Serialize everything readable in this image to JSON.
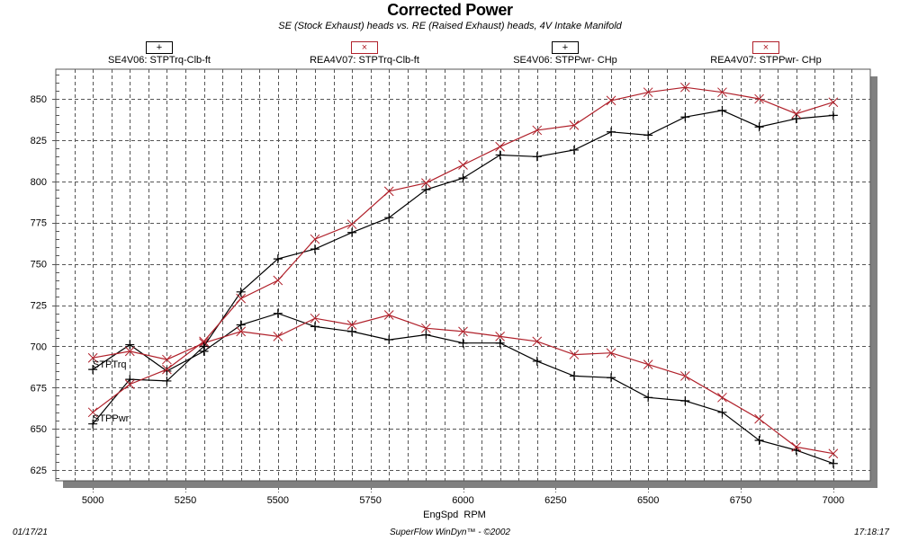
{
  "chart_data": {
    "type": "line",
    "title": "Corrected Power",
    "subtitle": "SE (Stock Exhaust) heads vs. RE (Raised Exhaust) heads, 4V Intake Manifold",
    "xlabel": "EngSpd  RPM",
    "ylabel": "",
    "xlim": [
      4900,
      7100
    ],
    "ylim": [
      618.5,
      868
    ],
    "x_ticks": [
      5000,
      5250,
      5500,
      5750,
      6000,
      6250,
      6500,
      6750,
      7000
    ],
    "y_ticks": [
      625,
      650,
      675,
      700,
      725,
      750,
      775,
      800,
      825,
      850
    ],
    "grid": true,
    "legend_position": "top",
    "x": [
      5000,
      5100,
      5200,
      5300,
      5400,
      5500,
      5600,
      5700,
      5800,
      5900,
      6000,
      6100,
      6200,
      6300,
      6400,
      6500,
      6600,
      6700,
      6800,
      6900,
      7000
    ],
    "series": [
      {
        "name": "SE4V06: STPTrq-Clb-ft",
        "color": "#000000",
        "marker": "plus",
        "values": [
          686,
          701,
          685,
          697,
          713,
          720,
          712,
          709,
          704,
          707,
          702,
          702,
          691,
          682,
          681,
          669,
          667,
          660,
          643,
          637,
          629
        ]
      },
      {
        "name": "REA4V07: STPTrq-Clb-ft",
        "color": "#b0202a",
        "marker": "x",
        "values": [
          693,
          697,
          692,
          702,
          709,
          706,
          717,
          713,
          719,
          711,
          709,
          706,
          703,
          695,
          696,
          689,
          682,
          669,
          656,
          639,
          635
        ]
      },
      {
        "name": "SE4V06: STPPwr- CHp",
        "color": "#000000",
        "marker": "plus",
        "values": [
          653,
          680,
          679,
          700,
          733,
          753,
          759,
          769,
          778,
          795,
          802,
          816,
          815,
          819,
          830,
          828,
          839,
          843,
          833,
          838,
          840
        ]
      },
      {
        "name": "REA4V07: STPPwr- CHp",
        "color": "#b0202a",
        "marker": "x",
        "values": [
          660,
          677,
          686,
          703,
          729,
          740,
          765,
          774,
          794,
          799,
          810,
          821,
          831,
          834,
          849,
          854,
          857,
          854,
          850,
          841,
          848
        ]
      }
    ],
    "annotations": [
      {
        "text": "STPTrq",
        "x": 5000,
        "y": 690
      },
      {
        "text": "STPPwr",
        "x": 5000,
        "y": 656
      }
    ]
  },
  "legend": {
    "marker_plus": "+",
    "marker_x": "×"
  },
  "footer": {
    "date": "01/17/21",
    "credit": "SuperFlow WinDyn™ - ©2002",
    "time": "17:18:17"
  },
  "colors": {
    "black_series": "#000000",
    "red_series": "#b0202a",
    "grid": "#555555",
    "shadow": "#808080"
  }
}
